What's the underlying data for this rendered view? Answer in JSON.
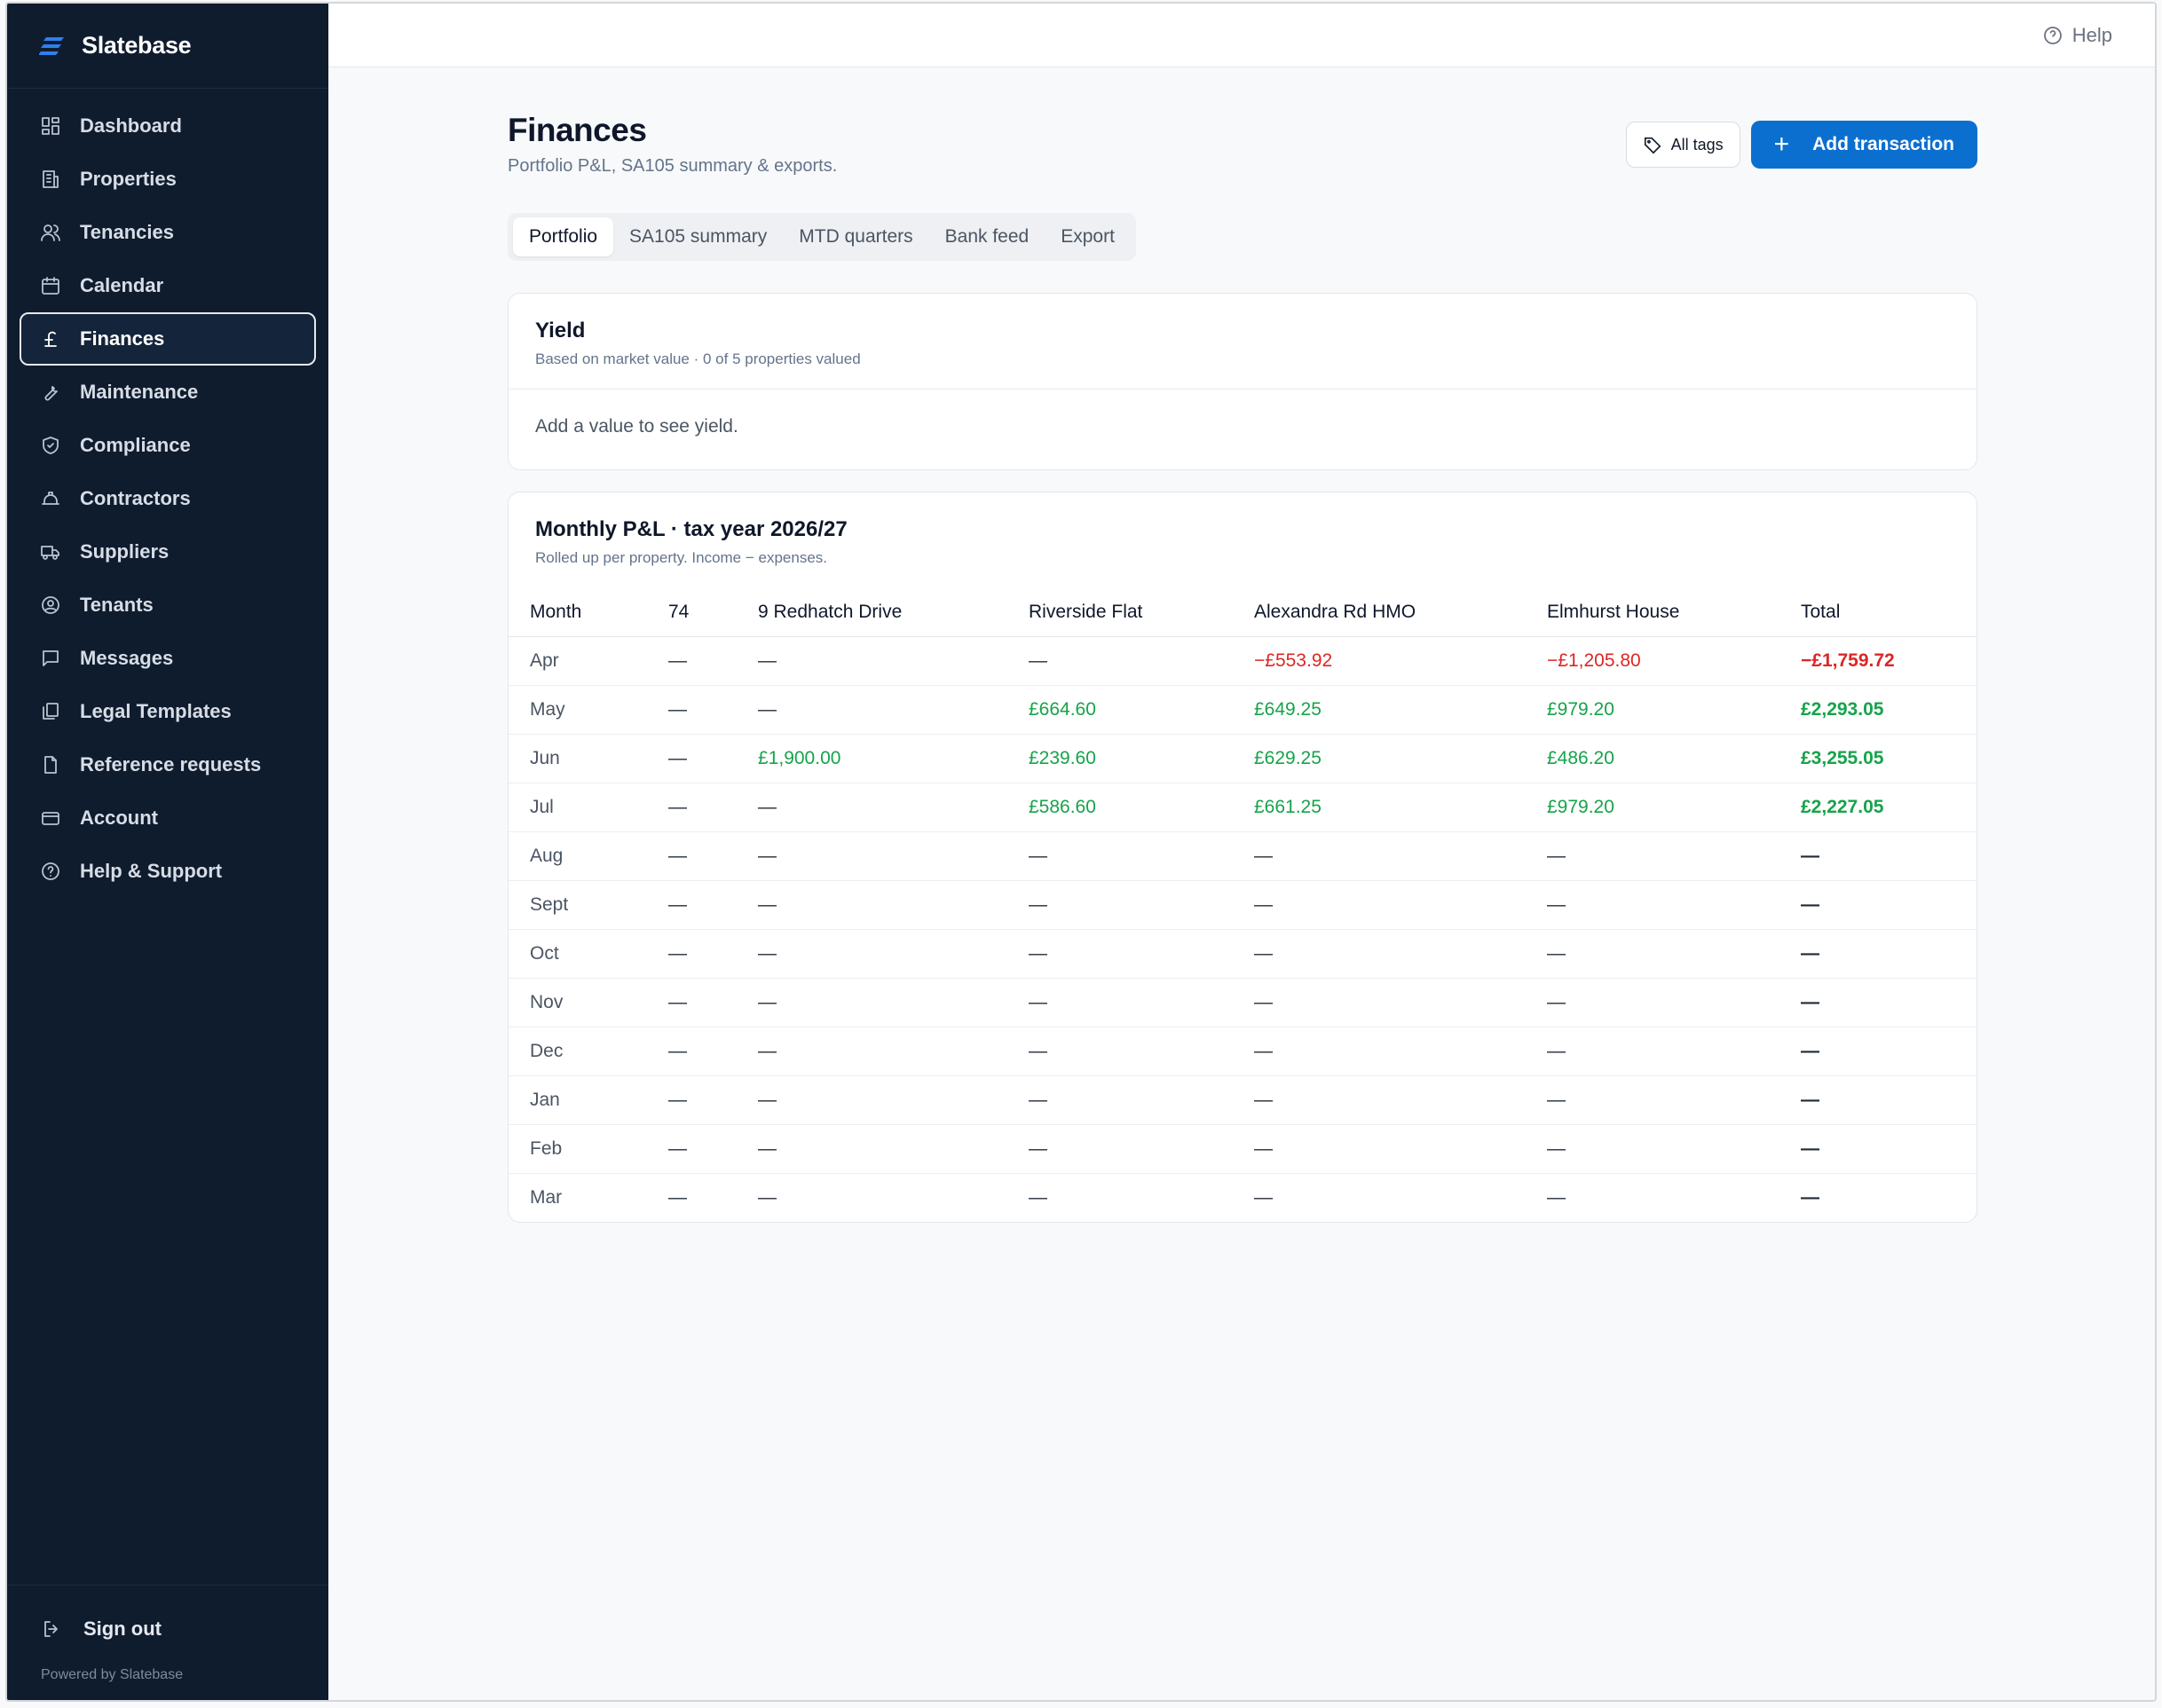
{
  "app": {
    "name": "Slatebase",
    "powered_by": "Powered by Slatebase"
  },
  "sidebar": {
    "items": [
      {
        "label": "Dashboard",
        "icon": "dashboard-icon"
      },
      {
        "label": "Properties",
        "icon": "building-icon"
      },
      {
        "label": "Tenancies",
        "icon": "users-icon"
      },
      {
        "label": "Calendar",
        "icon": "calendar-icon"
      },
      {
        "label": "Finances",
        "icon": "pound-icon",
        "active": true
      },
      {
        "label": "Maintenance",
        "icon": "wrench-icon"
      },
      {
        "label": "Compliance",
        "icon": "shield-icon"
      },
      {
        "label": "Contractors",
        "icon": "hardhat-icon"
      },
      {
        "label": "Suppliers",
        "icon": "truck-icon"
      },
      {
        "label": "Tenants",
        "icon": "user-circle-icon"
      },
      {
        "label": "Messages",
        "icon": "message-icon"
      },
      {
        "label": "Legal Templates",
        "icon": "documents-icon"
      },
      {
        "label": "Reference requests",
        "icon": "file-search-icon"
      },
      {
        "label": "Account",
        "icon": "card-icon"
      },
      {
        "label": "Help & Support",
        "icon": "help-circle-icon"
      }
    ],
    "sign_out": "Sign out"
  },
  "topbar": {
    "help_label": "Help"
  },
  "page": {
    "title": "Finances",
    "subtitle": "Portfolio P&L, SA105 summary & exports.",
    "tags_button": "All tags",
    "add_button": "Add transaction",
    "tabs": [
      "Portfolio",
      "SA105 summary",
      "MTD quarters",
      "Bank feed",
      "Export"
    ],
    "active_tab": "Portfolio"
  },
  "yield_card": {
    "title": "Yield",
    "subtitle": "Based on market value · 0 of 5 properties valued",
    "empty": "Add a value to see yield."
  },
  "pl_card": {
    "title": "Monthly P&L · tax year 2026/27",
    "subtitle": "Rolled up per property. Income − expenses.",
    "columns": [
      "Month",
      "74",
      "9 Redhatch Drive",
      "Riverside Flat",
      "Alexandra Rd HMO",
      "Elmhurst House",
      "Total"
    ],
    "rows": [
      [
        "Apr",
        "—",
        "—",
        "—",
        "−£553.92",
        "−£1,205.80",
        "−£1,759.72"
      ],
      [
        "May",
        "—",
        "—",
        "£664.60",
        "£649.25",
        "£979.20",
        "£2,293.05"
      ],
      [
        "Jun",
        "—",
        "£1,900.00",
        "£239.60",
        "£629.25",
        "£486.20",
        "£3,255.05"
      ],
      [
        "Jul",
        "—",
        "—",
        "£586.60",
        "£661.25",
        "£979.20",
        "£2,227.05"
      ],
      [
        "Aug",
        "—",
        "—",
        "—",
        "—",
        "—",
        "—"
      ],
      [
        "Sept",
        "—",
        "—",
        "—",
        "—",
        "—",
        "—"
      ],
      [
        "Oct",
        "—",
        "—",
        "—",
        "—",
        "—",
        "—"
      ],
      [
        "Nov",
        "—",
        "—",
        "—",
        "—",
        "—",
        "—"
      ],
      [
        "Dec",
        "—",
        "—",
        "—",
        "—",
        "—",
        "—"
      ],
      [
        "Jan",
        "—",
        "—",
        "—",
        "—",
        "—",
        "—"
      ],
      [
        "Feb",
        "—",
        "—",
        "—",
        "—",
        "—",
        "—"
      ],
      [
        "Mar",
        "—",
        "—",
        "—",
        "—",
        "—",
        "—"
      ]
    ]
  },
  "colors": {
    "sidebar_bg": "#0f1c2e",
    "accent": "#0b6fd0",
    "positive": "#16a34a",
    "negative": "#dc2626"
  }
}
